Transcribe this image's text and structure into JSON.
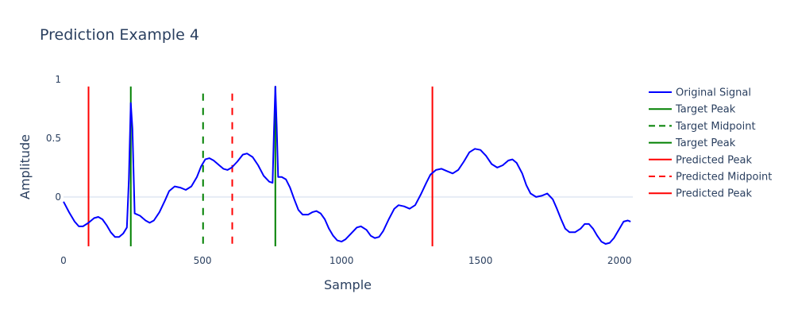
{
  "chart_data": {
    "type": "line",
    "title": "Prediction Example 4",
    "xlabel": "Sample",
    "ylabel": "Amplitude",
    "xlim": [
      0,
      2048
    ],
    "ylim": [
      -0.42,
      1.0
    ],
    "x_ticks": [
      0,
      500,
      1000,
      1500,
      2000
    ],
    "x_tick_labels": [
      "0",
      "500",
      "1000",
      "1500",
      "2000"
    ],
    "y_ticks": [
      0,
      0.5,
      1
    ],
    "y_tick_labels": [
      "0",
      "0.5",
      "1"
    ],
    "grid": false,
    "legend_position": "right",
    "colors": {
      "signal": "#0000ff",
      "target": "#008000",
      "predicted": "#ff0000",
      "zero_line": "#e6ebf5",
      "text": "#2a3f5f"
    },
    "series": [
      {
        "name": "Original Signal",
        "kind": "line",
        "color": "#0000ff",
        "points": [
          [
            0,
            -0.04
          ],
          [
            20,
            -0.13
          ],
          [
            40,
            -0.21
          ],
          [
            55,
            -0.25
          ],
          [
            70,
            -0.25
          ],
          [
            90,
            -0.22
          ],
          [
            110,
            -0.18
          ],
          [
            125,
            -0.17
          ],
          [
            140,
            -0.19
          ],
          [
            155,
            -0.24
          ],
          [
            170,
            -0.3
          ],
          [
            185,
            -0.34
          ],
          [
            200,
            -0.34
          ],
          [
            215,
            -0.31
          ],
          [
            228,
            -0.26
          ],
          [
            235,
            0.15
          ],
          [
            242,
            0.8
          ],
          [
            248,
            0.58
          ],
          [
            256,
            -0.14
          ],
          [
            275,
            -0.16
          ],
          [
            295,
            -0.2
          ],
          [
            310,
            -0.22
          ],
          [
            325,
            -0.2
          ],
          [
            345,
            -0.13
          ],
          [
            365,
            -0.03
          ],
          [
            380,
            0.05
          ],
          [
            400,
            0.09
          ],
          [
            420,
            0.08
          ],
          [
            440,
            0.06
          ],
          [
            460,
            0.09
          ],
          [
            480,
            0.17
          ],
          [
            495,
            0.26
          ],
          [
            510,
            0.32
          ],
          [
            525,
            0.33
          ],
          [
            540,
            0.31
          ],
          [
            560,
            0.27
          ],
          [
            575,
            0.24
          ],
          [
            590,
            0.23
          ],
          [
            605,
            0.25
          ],
          [
            625,
            0.3
          ],
          [
            645,
            0.36
          ],
          [
            660,
            0.37
          ],
          [
            680,
            0.34
          ],
          [
            700,
            0.27
          ],
          [
            720,
            0.18
          ],
          [
            740,
            0.13
          ],
          [
            752,
            0.12
          ],
          [
            757,
            0.55
          ],
          [
            762,
            0.94
          ],
          [
            767,
            0.6
          ],
          [
            772,
            0.17
          ],
          [
            785,
            0.17
          ],
          [
            800,
            0.15
          ],
          [
            815,
            0.08
          ],
          [
            830,
            -0.02
          ],
          [
            845,
            -0.11
          ],
          [
            860,
            -0.15
          ],
          [
            880,
            -0.15
          ],
          [
            895,
            -0.13
          ],
          [
            910,
            -0.12
          ],
          [
            925,
            -0.14
          ],
          [
            940,
            -0.19
          ],
          [
            955,
            -0.27
          ],
          [
            970,
            -0.33
          ],
          [
            985,
            -0.37
          ],
          [
            1000,
            -0.38
          ],
          [
            1015,
            -0.36
          ],
          [
            1035,
            -0.31
          ],
          [
            1055,
            -0.26
          ],
          [
            1070,
            -0.25
          ],
          [
            1090,
            -0.28
          ],
          [
            1105,
            -0.33
          ],
          [
            1120,
            -0.35
          ],
          [
            1135,
            -0.34
          ],
          [
            1150,
            -0.29
          ],
          [
            1170,
            -0.19
          ],
          [
            1190,
            -0.1
          ],
          [
            1205,
            -0.07
          ],
          [
            1225,
            -0.08
          ],
          [
            1245,
            -0.1
          ],
          [
            1265,
            -0.07
          ],
          [
            1285,
            0.02
          ],
          [
            1305,
            0.12
          ],
          [
            1320,
            0.19
          ],
          [
            1340,
            0.23
          ],
          [
            1360,
            0.24
          ],
          [
            1380,
            0.22
          ],
          [
            1400,
            0.2
          ],
          [
            1420,
            0.23
          ],
          [
            1440,
            0.3
          ],
          [
            1460,
            0.38
          ],
          [
            1480,
            0.41
          ],
          [
            1500,
            0.4
          ],
          [
            1520,
            0.35
          ],
          [
            1540,
            0.28
          ],
          [
            1560,
            0.25
          ],
          [
            1580,
            0.27
          ],
          [
            1600,
            0.31
          ],
          [
            1615,
            0.32
          ],
          [
            1630,
            0.29
          ],
          [
            1650,
            0.2
          ],
          [
            1665,
            0.1
          ],
          [
            1680,
            0.03
          ],
          [
            1700,
            0.0
          ],
          [
            1720,
            0.01
          ],
          [
            1740,
            0.03
          ],
          [
            1760,
            -0.02
          ],
          [
            1775,
            -0.1
          ],
          [
            1790,
            -0.19
          ],
          [
            1805,
            -0.27
          ],
          [
            1820,
            -0.3
          ],
          [
            1840,
            -0.3
          ],
          [
            1860,
            -0.27
          ],
          [
            1875,
            -0.23
          ],
          [
            1890,
            -0.23
          ],
          [
            1905,
            -0.27
          ],
          [
            1920,
            -0.33
          ],
          [
            1935,
            -0.38
          ],
          [
            1950,
            -0.4
          ],
          [
            1965,
            -0.39
          ],
          [
            1980,
            -0.35
          ],
          [
            2000,
            -0.27
          ],
          [
            2015,
            -0.21
          ],
          [
            2030,
            -0.2
          ],
          [
            2040,
            -0.21
          ]
        ]
      },
      {
        "name": "Target Peak",
        "kind": "vline",
        "x": 242,
        "y": [
          -0.42,
          0.94
        ],
        "color": "#008000",
        "dash": "solid"
      },
      {
        "name": "Target Midpoint",
        "kind": "vline",
        "x": 502,
        "y": [
          -0.42,
          0.88
        ],
        "color": "#008000",
        "dash": "dash"
      },
      {
        "name": "Target Peak",
        "kind": "vline",
        "x": 762,
        "y": [
          -0.42,
          0.94
        ],
        "color": "#008000",
        "dash": "solid"
      },
      {
        "name": "Predicted Peak",
        "kind": "vline",
        "x": 90,
        "y": [
          -0.42,
          0.94
        ],
        "color": "#ff0000",
        "dash": "solid"
      },
      {
        "name": "Predicted Midpoint",
        "kind": "vline",
        "x": 607,
        "y": [
          -0.42,
          0.88
        ],
        "color": "#ff0000",
        "dash": "dash"
      },
      {
        "name": "Predicted Peak",
        "kind": "vline",
        "x": 1327,
        "y": [
          -0.42,
          0.94
        ],
        "color": "#ff0000",
        "dash": "solid"
      }
    ]
  }
}
